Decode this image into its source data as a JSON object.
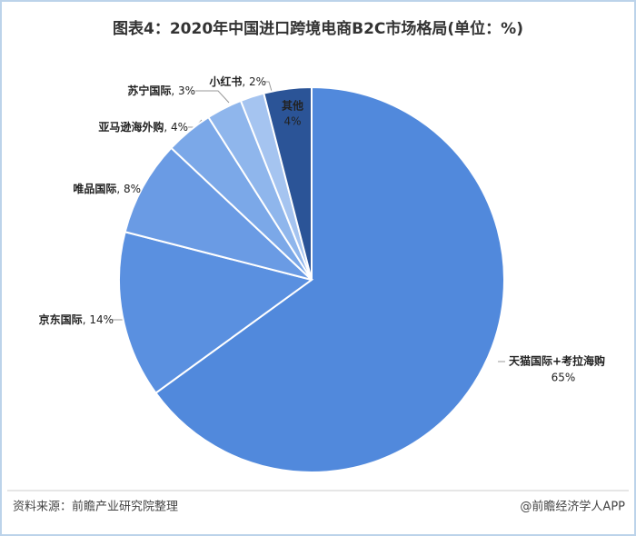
{
  "chart_data": {
    "type": "pie",
    "title": "图表4：2020年中国进口跨境电商B2C市场格局(单位：%)",
    "categories": [
      "天猫国际+考拉海购",
      "京东国际",
      "唯品国际",
      "亚马逊海外购",
      "苏宁国际",
      "小红书",
      "其他"
    ],
    "values": [
      65,
      14,
      8,
      4,
      3,
      2,
      4
    ],
    "value_labels": [
      "65%",
      ", 14%",
      ", 8%",
      ", 4%",
      ", 3%",
      ", 2%",
      "4%"
    ],
    "colors": [
      "#5189dc",
      "#5a90e0",
      "#6a9be4",
      "#7ba8e8",
      "#8fb6ec",
      "#a5c4f0",
      "#2b5497"
    ],
    "source": "资料来源：前瞻产业研究院整理",
    "credit": "@前瞻经济学人APP"
  }
}
